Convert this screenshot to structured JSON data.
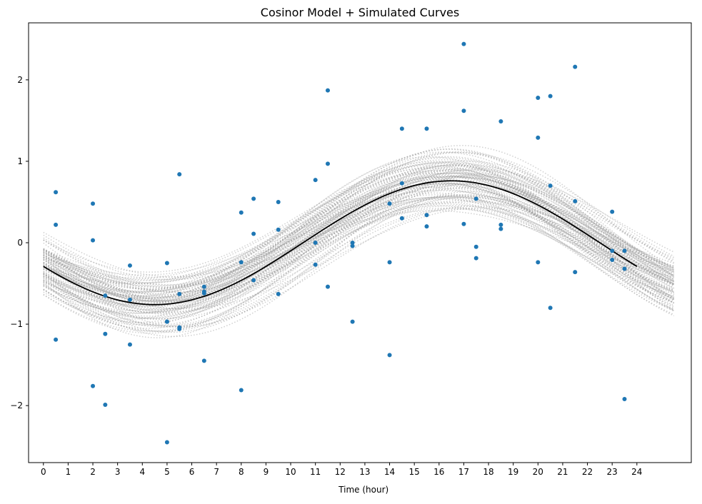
{
  "chart_data": {
    "type": "scatter",
    "title": "Cosinor Model + Simulated Curves",
    "xlabel": "Time (hour)",
    "ylabel": "",
    "xlim": [
      -0.6,
      26.2
    ],
    "ylim": [
      -2.7,
      2.7
    ],
    "grid": false,
    "x_ticks": [
      0,
      1,
      2,
      3,
      4,
      5,
      6,
      7,
      8,
      9,
      10,
      11,
      12,
      13,
      14,
      15,
      16,
      17,
      18,
      19,
      20,
      21,
      22,
      23,
      24
    ],
    "y_ticks": [
      -2,
      -1,
      0,
      1,
      2
    ],
    "y_tick_labels": [
      "−2",
      "−1",
      "0",
      "1",
      "2"
    ],
    "model": {
      "mesor": 0.0,
      "amplitude": 0.76,
      "period": 24,
      "acrophase_hour": 16.5,
      "x_range": [
        0,
        24
      ],
      "color": "#000000"
    },
    "simulated_curves": {
      "count": 100,
      "x_range": [
        0,
        25.5
      ],
      "color": "#999999",
      "mesor_sd": 0.17,
      "amplitude_sd": 0.12,
      "phase_sd_hours": 0.55
    },
    "points": {
      "color": "#1f77b4",
      "x": [
        0.5,
        0.5,
        0.5,
        2,
        2,
        2,
        2.5,
        2.5,
        2.5,
        3.5,
        3.5,
        3.5,
        5,
        5,
        5,
        5.5,
        5.5,
        5.5,
        6.5,
        6.5,
        6.5,
        6.5,
        8,
        8,
        8,
        8.5,
        8.5,
        8.5,
        9.5,
        9.5,
        9.5,
        11,
        11,
        11,
        11.5,
        11.5,
        11.5,
        12.5,
        12.5,
        12.5,
        14,
        14,
        14,
        14.5,
        14.5,
        14.5,
        15.5,
        15.5,
        15.5,
        17,
        17,
        17,
        17.5,
        17.5,
        17.5,
        18.5,
        18.5,
        18.5,
        20,
        20,
        20,
        20.5,
        20.5,
        20.5,
        21.5,
        21.5,
        21.5,
        23,
        23,
        23,
        23.5,
        23.5,
        23.5,
        5,
        5.5
      ],
      "y": [
        0.62,
        0.22,
        -1.19,
        0.48,
        0.03,
        -1.76,
        -0.65,
        -1.12,
        -1.99,
        -0.28,
        -0.7,
        -1.25,
        -0.25,
        -0.97,
        -2.45,
        0.84,
        -0.63,
        -1.06,
        -0.54,
        -0.62,
        -1.45,
        -0.6,
        0.37,
        -0.24,
        -1.81,
        0.54,
        0.11,
        -0.46,
        0.5,
        0.16,
        -0.63,
        0.77,
        0.0,
        -0.27,
        1.87,
        0.97,
        -0.54,
        0.0,
        -0.04,
        -0.97,
        0.48,
        -0.24,
        -1.38,
        1.4,
        0.73,
        0.3,
        1.4,
        0.34,
        0.2,
        2.44,
        1.62,
        0.23,
        0.54,
        -0.05,
        -0.19,
        1.49,
        0.22,
        0.17,
        1.78,
        1.29,
        -0.24,
        1.8,
        0.7,
        -0.8,
        2.16,
        0.51,
        -0.36,
        0.38,
        -0.1,
        -0.21,
        -0.1,
        -0.32,
        -1.92,
        -0.97,
        -1.04
      ]
    }
  }
}
